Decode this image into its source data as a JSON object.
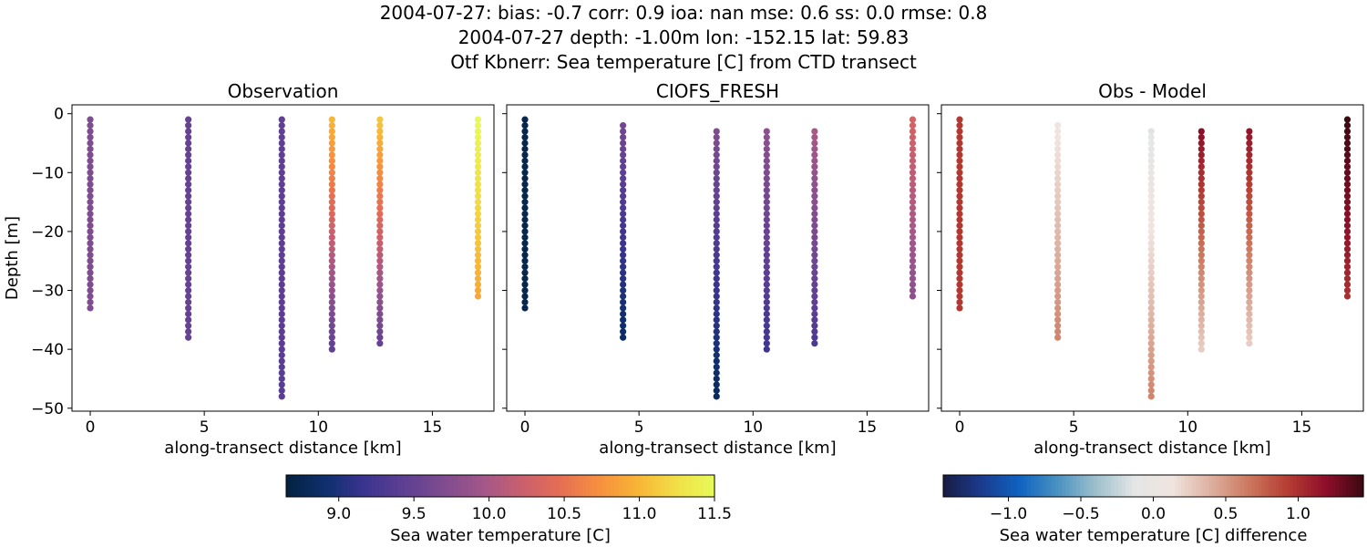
{
  "header": {
    "line1": "2004-07-27: bias: -0.7  corr: 0.9  ioa: nan  mse: 0.6  ss: 0.0  rmse: 0.8",
    "line2": "2004-07-27 depth: -1.00m lon: -152.15 lat: 59.83",
    "line3": "Otf Kbnerr: Sea temperature [C] from CTD transect"
  },
  "chart_data": [
    {
      "type": "scatter",
      "title": "Observation",
      "xlabel": "along-transect distance [km]",
      "ylabel": "Depth [m]",
      "xlim": [
        -0.8,
        17.7
      ],
      "ylim": [
        -50.5,
        1.5
      ],
      "xticks": [
        0,
        5,
        10,
        15
      ],
      "yticks": [
        0,
        -10,
        -20,
        -30,
        -40,
        -50
      ],
      "colormap": "thermal",
      "vmin": 8.65,
      "vmax": 11.5,
      "stations": [
        {
          "x": 0.0,
          "top": -1,
          "bottom": -33,
          "value_top": 9.7,
          "value_bottom": 9.7
        },
        {
          "x": 4.3,
          "top": -1,
          "bottom": -38,
          "value_top": 9.5,
          "value_bottom": 9.5
        },
        {
          "x": 8.4,
          "top": -1,
          "bottom": -48,
          "value_top": 9.45,
          "value_bottom": 9.4
        },
        {
          "x": 10.6,
          "top": -1,
          "bottom": -40,
          "value_top": 11.0,
          "value_bottom": 9.45
        },
        {
          "x": 12.7,
          "top": -1,
          "bottom": -39,
          "value_top": 11.1,
          "value_bottom": 9.5
        },
        {
          "x": 17.0,
          "top": -1,
          "bottom": -31,
          "value_top": 11.5,
          "value_bottom": 10.9
        }
      ]
    },
    {
      "type": "scatter",
      "title": "CIOFS_FRESH",
      "xlabel": "along-transect distance [km]",
      "ylabel": "",
      "xlim": [
        -0.8,
        17.7
      ],
      "ylim": [
        -50.5,
        1.5
      ],
      "xticks": [
        0,
        5,
        10,
        15
      ],
      "yticks": [
        0,
        -10,
        -20,
        -30,
        -40,
        -50
      ],
      "colormap": "thermal",
      "vmin": 8.65,
      "vmax": 11.5,
      "stations": [
        {
          "x": 0.0,
          "top": -1,
          "bottom": -33,
          "value_top": 8.75,
          "value_bottom": 8.75
        },
        {
          "x": 4.3,
          "top": -2,
          "bottom": -38,
          "value_top": 9.6,
          "value_bottom": 8.85
        },
        {
          "x": 8.4,
          "top": -3,
          "bottom": -48,
          "value_top": 9.7,
          "value_bottom": 8.8
        },
        {
          "x": 10.6,
          "top": -3,
          "bottom": -40,
          "value_top": 9.8,
          "value_bottom": 9.2
        },
        {
          "x": 12.7,
          "top": -3,
          "bottom": -39,
          "value_top": 10.0,
          "value_bottom": 9.3
        },
        {
          "x": 17.0,
          "top": -1,
          "bottom": -31,
          "value_top": 10.3,
          "value_bottom": 9.8
        }
      ]
    },
    {
      "type": "scatter",
      "title": "Obs - Model",
      "xlabel": "along-transect distance [km]",
      "ylabel": "",
      "xlim": [
        -0.8,
        17.7
      ],
      "ylim": [
        -50.5,
        1.5
      ],
      "xticks": [
        0,
        5,
        10,
        15
      ],
      "yticks": [
        0,
        -10,
        -20,
        -30,
        -40,
        -50
      ],
      "colormap": "balance",
      "vmin": -1.45,
      "vmax": 1.45,
      "stations": [
        {
          "x": 0.0,
          "top": -1,
          "bottom": -33,
          "value_top": 0.95,
          "value_bottom": 0.95
        },
        {
          "x": 4.3,
          "top": -2,
          "bottom": -38,
          "value_top": 0.1,
          "value_bottom": 0.6
        },
        {
          "x": 8.4,
          "top": -3,
          "bottom": -48,
          "value_top": -0.15,
          "value_bottom": 0.6
        },
        {
          "x": 10.6,
          "top": -3,
          "bottom": -40,
          "value_top": 1.2,
          "value_bottom": 0.25
        },
        {
          "x": 12.7,
          "top": -3,
          "bottom": -39,
          "value_top": 1.15,
          "value_bottom": 0.25
        },
        {
          "x": 17.0,
          "top": -1,
          "bottom": -31,
          "value_top": 1.45,
          "value_bottom": 1.0
        }
      ]
    }
  ],
  "colorbars": [
    {
      "label": "Sea water temperature [C]",
      "colormap": "thermal",
      "vmin": 8.65,
      "vmax": 11.5,
      "ticks": [
        9.0,
        9.5,
        10.0,
        10.5,
        11.0,
        11.5
      ],
      "tick_labels": [
        "9.0",
        "9.5",
        "10.0",
        "10.5",
        "11.0",
        "11.5"
      ]
    },
    {
      "label": "Sea water temperature [C] difference",
      "colormap": "balance",
      "vmin": -1.45,
      "vmax": 1.45,
      "ticks": [
        -1.0,
        -0.5,
        0.0,
        0.5,
        1.0
      ],
      "tick_labels": [
        "−1.0",
        "−0.5",
        "0.0",
        "0.5",
        "1.0"
      ]
    }
  ]
}
